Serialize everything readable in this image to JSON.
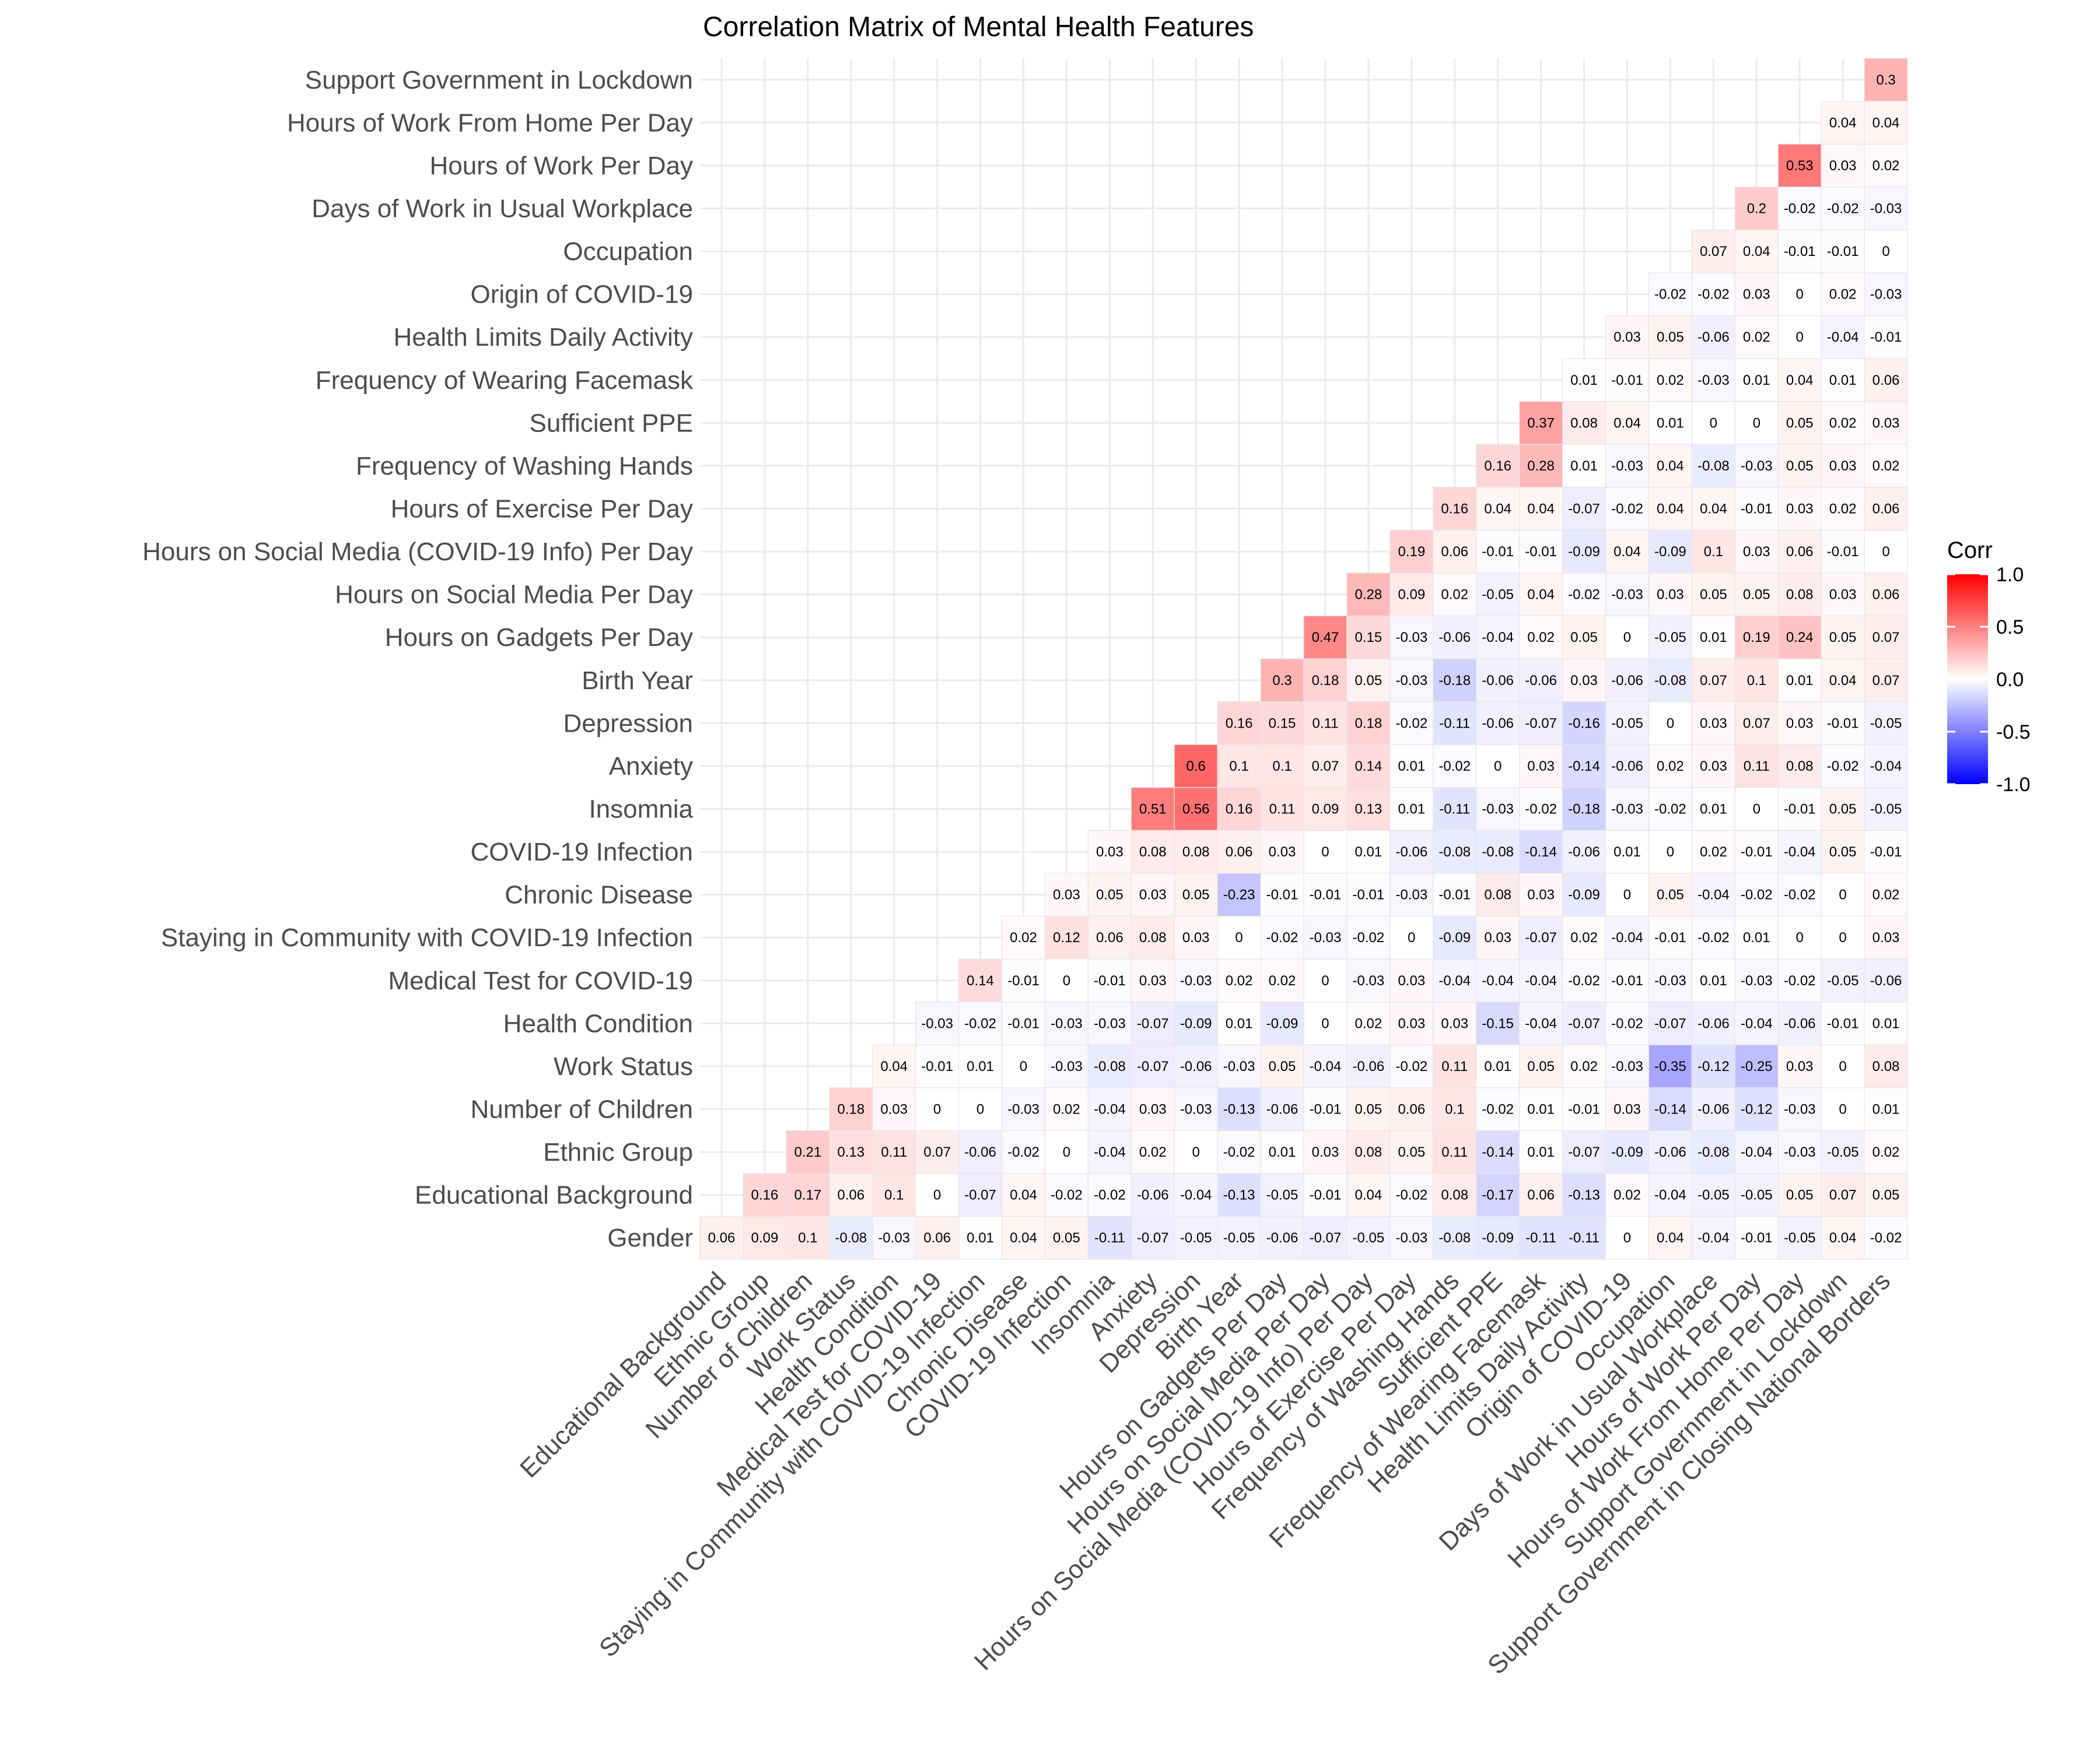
{
  "chart_data": {
    "type": "heatmap",
    "title": "Correlation Matrix of Mental Health Features",
    "x_labels": [
      "Educational Background",
      "Ethnic Group",
      "Number of Children",
      "Work Status",
      "Health Condition",
      "Medical Test for COVID-19",
      "Staying in Community with COVID-19 Infection",
      "Chronic Disease",
      "COVID-19 Infection",
      "Insomnia",
      "Anxiety",
      "Depression",
      "Birth Year",
      "Hours on Gadgets Per Day",
      "Hours on Social Media Per Day",
      "Hours on Social Media (COVID-19 Info) Per Day",
      "Hours of Exercise Per Day",
      "Frequency of Washing Hands",
      "Sufficient PPE",
      "Frequency of Wearing Facemask",
      "Health Limits Daily Activity",
      "Origin of COVID-19",
      "Occupation",
      "Days of Work in Usual Workplace",
      "Hours of Work Per Day",
      "Hours of Work From Home Per Day",
      "Support Government in Lockdown",
      "Support Government in Closing National Borders"
    ],
    "y_labels": [
      "Gender",
      "Educational Background",
      "Ethnic Group",
      "Number of Children",
      "Work Status",
      "Health Condition",
      "Medical Test for COVID-19",
      "Staying in Community with COVID-19 Infection",
      "Chronic Disease",
      "COVID-19 Infection",
      "Insomnia",
      "Anxiety",
      "Depression",
      "Birth Year",
      "Hours on Gadgets Per Day",
      "Hours on Social Media Per Day",
      "Hours on Social Media (COVID-19 Info) Per Day",
      "Hours of Exercise Per Day",
      "Frequency of Washing Hands",
      "Sufficient PPE",
      "Frequency of Wearing Facemask",
      "Health Limits Daily Activity",
      "Origin of COVID-19",
      "Occupation",
      "Days of Work in Usual Workplace",
      "Hours of Work Per Day",
      "Hours of Work From Home Per Day",
      "Support Government in Lockdown"
    ],
    "values": [
      [
        0.06,
        0.09,
        0.1,
        -0.08,
        -0.03,
        0.06,
        0.01,
        0.04,
        0.05,
        -0.11,
        -0.07,
        -0.05,
        -0.05,
        -0.06,
        -0.07,
        -0.05,
        -0.03,
        -0.08,
        -0.09,
        -0.11,
        -0.11,
        0,
        0.04,
        -0.04,
        -0.01,
        -0.05,
        0.04,
        -0.02
      ],
      [
        null,
        0.16,
        0.17,
        0.06,
        0.1,
        0,
        -0.07,
        0.04,
        -0.02,
        -0.02,
        -0.06,
        -0.04,
        -0.13,
        -0.05,
        -0.01,
        0.04,
        -0.02,
        0.08,
        -0.17,
        0.06,
        -0.13,
        0.02,
        -0.04,
        -0.05,
        -0.05,
        0.05,
        0.07,
        0.05
      ],
      [
        null,
        null,
        0.21,
        0.13,
        0.11,
        0.07,
        -0.06,
        -0.02,
        0,
        -0.04,
        0.02,
        0,
        -0.02,
        0.01,
        0.03,
        0.08,
        0.05,
        0.11,
        -0.14,
        0.01,
        -0.07,
        -0.09,
        -0.06,
        -0.08,
        -0.04,
        -0.03,
        -0.05,
        0.02
      ],
      [
        null,
        null,
        null,
        0.18,
        0.03,
        0,
        0,
        -0.03,
        0.02,
        -0.04,
        0.03,
        -0.03,
        -0.13,
        -0.06,
        -0.01,
        0.05,
        0.06,
        0.1,
        -0.02,
        0.01,
        -0.01,
        0.03,
        -0.14,
        -0.06,
        -0.12,
        -0.03,
        0,
        0.01
      ],
      [
        null,
        null,
        null,
        null,
        0.04,
        -0.01,
        0.01,
        0,
        -0.03,
        -0.08,
        -0.07,
        -0.06,
        -0.03,
        0.05,
        -0.04,
        -0.06,
        -0.02,
        0.11,
        0.01,
        0.05,
        0.02,
        -0.03,
        -0.35,
        -0.12,
        -0.25,
        0.03,
        0,
        0.08
      ],
      [
        null,
        null,
        null,
        null,
        null,
        -0.03,
        -0.02,
        -0.01,
        -0.03,
        -0.03,
        -0.07,
        -0.09,
        0.01,
        -0.09,
        0,
        0.02,
        0.03,
        0.03,
        -0.15,
        -0.04,
        -0.07,
        -0.02,
        -0.07,
        -0.06,
        -0.04,
        -0.06,
        -0.01,
        0.01
      ],
      [
        null,
        null,
        null,
        null,
        null,
        null,
        0.14,
        -0.01,
        0,
        -0.01,
        0.03,
        -0.03,
        0.02,
        0.02,
        0,
        -0.03,
        0.03,
        -0.04,
        -0.04,
        -0.04,
        -0.02,
        -0.01,
        -0.03,
        0.01,
        -0.03,
        -0.02,
        -0.05,
        -0.06
      ],
      [
        null,
        null,
        null,
        null,
        null,
        null,
        null,
        0.02,
        0.12,
        0.06,
        0.08,
        0.03,
        0,
        -0.02,
        -0.03,
        -0.02,
        0,
        -0.09,
        0.03,
        -0.07,
        0.02,
        -0.04,
        -0.01,
        -0.02,
        0.01,
        0,
        0,
        0.03
      ],
      [
        null,
        null,
        null,
        null,
        null,
        null,
        null,
        null,
        0.03,
        0.05,
        0.03,
        0.05,
        -0.23,
        -0.01,
        -0.01,
        -0.01,
        -0.03,
        -0.01,
        0.08,
        0.03,
        -0.09,
        0,
        0.05,
        -0.04,
        -0.02,
        -0.02,
        0,
        0.02
      ],
      [
        null,
        null,
        null,
        null,
        null,
        null,
        null,
        null,
        null,
        0.03,
        0.08,
        0.08,
        0.06,
        0.03,
        0,
        0.01,
        -0.06,
        -0.08,
        -0.08,
        -0.14,
        -0.06,
        0.01,
        0,
        0.02,
        -0.01,
        -0.04,
        0.05,
        -0.01
      ],
      [
        null,
        null,
        null,
        null,
        null,
        null,
        null,
        null,
        null,
        null,
        0.51,
        0.56,
        0.16,
        0.11,
        0.09,
        0.13,
        0.01,
        -0.11,
        -0.03,
        -0.02,
        -0.18,
        -0.03,
        -0.02,
        0.01,
        0,
        -0.01,
        0.05,
        -0.05
      ],
      [
        null,
        null,
        null,
        null,
        null,
        null,
        null,
        null,
        null,
        null,
        null,
        0.6,
        0.1,
        0.1,
        0.07,
        0.14,
        0.01,
        -0.02,
        0,
        0.03,
        -0.14,
        -0.06,
        0.02,
        0.03,
        0.11,
        0.08,
        -0.02,
        -0.04
      ],
      [
        null,
        null,
        null,
        null,
        null,
        null,
        null,
        null,
        null,
        null,
        null,
        null,
        0.16,
        0.15,
        0.11,
        0.18,
        -0.02,
        -0.11,
        -0.06,
        -0.07,
        -0.16,
        -0.05,
        0,
        0.03,
        0.07,
        0.03,
        -0.01,
        -0.05
      ],
      [
        null,
        null,
        null,
        null,
        null,
        null,
        null,
        null,
        null,
        null,
        null,
        null,
        null,
        0.3,
        0.18,
        0.05,
        -0.03,
        -0.18,
        -0.06,
        -0.06,
        0.03,
        -0.06,
        -0.08,
        0.07,
        0.1,
        0.01,
        0.04,
        0.07
      ],
      [
        null,
        null,
        null,
        null,
        null,
        null,
        null,
        null,
        null,
        null,
        null,
        null,
        null,
        null,
        0.47,
        0.15,
        -0.03,
        -0.06,
        -0.04,
        0.02,
        0.05,
        0,
        -0.05,
        0.01,
        0.19,
        0.24,
        0.05,
        0.07
      ],
      [
        null,
        null,
        null,
        null,
        null,
        null,
        null,
        null,
        null,
        null,
        null,
        null,
        null,
        null,
        null,
        0.28,
        0.09,
        0.02,
        -0.05,
        0.04,
        -0.02,
        -0.03,
        0.03,
        0.05,
        0.05,
        0.08,
        0.03,
        0.06
      ],
      [
        null,
        null,
        null,
        null,
        null,
        null,
        null,
        null,
        null,
        null,
        null,
        null,
        null,
        null,
        null,
        null,
        0.19,
        0.06,
        -0.01,
        -0.01,
        -0.09,
        0.04,
        -0.09,
        0.1,
        0.03,
        0.06,
        -0.01,
        0
      ],
      [
        null,
        null,
        null,
        null,
        null,
        null,
        null,
        null,
        null,
        null,
        null,
        null,
        null,
        null,
        null,
        null,
        null,
        0.16,
        0.04,
        0.04,
        -0.07,
        -0.02,
        0.04,
        0.04,
        -0.01,
        0.03,
        0.02,
        0.06
      ],
      [
        null,
        null,
        null,
        null,
        null,
        null,
        null,
        null,
        null,
        null,
        null,
        null,
        null,
        null,
        null,
        null,
        null,
        null,
        0.16,
        0.28,
        0.01,
        -0.03,
        0.04,
        -0.08,
        -0.03,
        0.05,
        0.03,
        0.02
      ],
      [
        null,
        null,
        null,
        null,
        null,
        null,
        null,
        null,
        null,
        null,
        null,
        null,
        null,
        null,
        null,
        null,
        null,
        null,
        null,
        0.37,
        0.08,
        0.04,
        0.01,
        0,
        0,
        0.05,
        0.02,
        0.03
      ],
      [
        null,
        null,
        null,
        null,
        null,
        null,
        null,
        null,
        null,
        null,
        null,
        null,
        null,
        null,
        null,
        null,
        null,
        null,
        null,
        null,
        0.01,
        -0.01,
        0.02,
        -0.03,
        0.01,
        0.04,
        0.01,
        0.06
      ],
      [
        null,
        null,
        null,
        null,
        null,
        null,
        null,
        null,
        null,
        null,
        null,
        null,
        null,
        null,
        null,
        null,
        null,
        null,
        null,
        null,
        null,
        0.03,
        0.05,
        -0.06,
        0.02,
        0,
        -0.04,
        -0.01
      ],
      [
        null,
        null,
        null,
        null,
        null,
        null,
        null,
        null,
        null,
        null,
        null,
        null,
        null,
        null,
        null,
        null,
        null,
        null,
        null,
        null,
        null,
        null,
        -0.02,
        -0.02,
        0.03,
        0,
        0.02,
        -0.03
      ],
      [
        null,
        null,
        null,
        null,
        null,
        null,
        null,
        null,
        null,
        null,
        null,
        null,
        null,
        null,
        null,
        null,
        null,
        null,
        null,
        null,
        null,
        null,
        null,
        0.07,
        0.04,
        -0.01,
        -0.01,
        0
      ],
      [
        null,
        null,
        null,
        null,
        null,
        null,
        null,
        null,
        null,
        null,
        null,
        null,
        null,
        null,
        null,
        null,
        null,
        null,
        null,
        null,
        null,
        null,
        null,
        null,
        0.2,
        -0.02,
        -0.02,
        -0.03
      ],
      [
        null,
        null,
        null,
        null,
        null,
        null,
        null,
        null,
        null,
        null,
        null,
        null,
        null,
        null,
        null,
        null,
        null,
        null,
        null,
        null,
        null,
        null,
        null,
        null,
        null,
        0.53,
        0.03,
        0.02
      ],
      [
        null,
        null,
        null,
        null,
        null,
        null,
        null,
        null,
        null,
        null,
        null,
        null,
        null,
        null,
        null,
        null,
        null,
        null,
        null,
        null,
        null,
        null,
        null,
        null,
        null,
        null,
        0.04,
        0.04
      ],
      [
        null,
        null,
        null,
        null,
        null,
        null,
        null,
        null,
        null,
        null,
        null,
        null,
        null,
        null,
        null,
        null,
        null,
        null,
        null,
        null,
        null,
        null,
        null,
        null,
        null,
        null,
        null,
        0.3
      ]
    ],
    "legend": {
      "title": "Corr",
      "ticks": [
        "1.0",
        "0.5",
        "0.0",
        "-0.5",
        "-1.0"
      ],
      "range": [
        -1,
        1
      ],
      "low_color": "#0000ff",
      "mid_color": "#ffffff",
      "high_color": "#ff0000"
    },
    "grid": true,
    "legend_position": "right"
  }
}
